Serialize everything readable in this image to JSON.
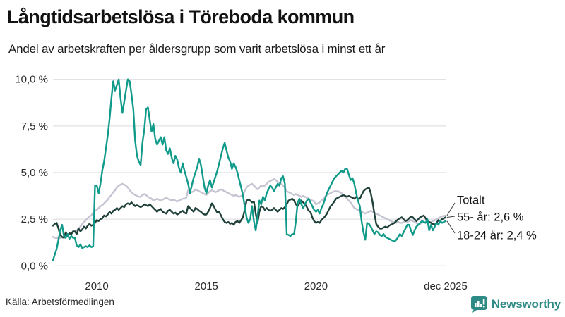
{
  "header": {
    "title": "Långtidsarbetslösa i Töreboda kommun",
    "subtitle": "Andel av arbetskraften per åldersgrupp som varit arbetslösa i minst ett år"
  },
  "footer": {
    "source": "Källa: Arbetsförmedlingen",
    "brand": "Newsworthy",
    "brand_color": "#2d8a85"
  },
  "colors": {
    "grid": "#d9d9de",
    "axis_text": "#2b2b2b",
    "label_text": "#161616",
    "leader_line": "#3d3d3d"
  },
  "chart_data": {
    "type": "line",
    "title": "Långtidsarbetslösa i Töreboda kommun",
    "subtitle": "Andel av arbetskraften per åldersgrupp som varit arbetslösa i minst ett år",
    "x_unit": "month",
    "x_start": "2008-01",
    "x_end": "2025-12",
    "ylim": [
      0,
      10
    ],
    "grid": true,
    "legend_position": "end-of-line-labels",
    "y_ticks": [
      {
        "label": "0,0 %",
        "value": 0
      },
      {
        "label": "2,5 %",
        "value": 2.5
      },
      {
        "label": "5,0 %",
        "value": 5
      },
      {
        "label": "7,5 %",
        "value": 7.5
      },
      {
        "label": "10,0 %",
        "value": 10
      }
    ],
    "x_ticks": [
      {
        "label": "2010",
        "month_index": 24
      },
      {
        "label": "2015",
        "month_index": 84
      },
      {
        "label": "2020",
        "month_index": 144
      },
      {
        "label": "dec 2025",
        "month_index": 215
      }
    ],
    "series": [
      {
        "name": "Totalt",
        "end_label": "Totalt",
        "end_value": 2.7,
        "color": "#c5c4d2",
        "values": [
          1.55,
          1.5,
          1.5,
          1.45,
          1.5,
          1.5,
          1.55,
          1.6,
          1.65,
          1.7,
          1.75,
          1.8,
          1.85,
          1.9,
          2.0,
          2.1,
          2.25,
          2.35,
          2.45,
          2.55,
          2.65,
          2.7,
          2.85,
          2.95,
          3.0,
          3.1,
          3.2,
          3.25,
          3.35,
          3.45,
          3.55,
          3.7,
          3.8,
          3.95,
          4.05,
          4.2,
          4.3,
          4.35,
          4.4,
          4.35,
          4.3,
          4.2,
          4.05,
          3.95,
          3.85,
          3.8,
          3.75,
          3.7,
          3.7,
          3.8,
          3.85,
          3.8,
          3.7,
          3.65,
          3.6,
          3.5,
          3.55,
          3.6,
          3.55,
          3.5,
          3.55,
          3.6,
          3.65,
          3.6,
          3.55,
          3.5,
          3.55,
          3.5,
          3.45,
          3.5,
          3.55,
          3.6,
          3.6,
          3.65,
          4.05,
          4.0,
          3.95,
          4.0,
          4.1,
          4.05,
          4.0,
          3.95,
          3.9,
          3.85,
          3.8,
          3.9,
          4.0,
          4.05,
          4.0,
          3.95,
          4.0,
          4.05,
          4.1,
          4.05,
          4.0,
          3.95,
          3.9,
          3.85,
          3.8,
          3.75,
          3.8,
          3.75,
          3.7,
          3.75,
          3.8,
          4.0,
          4.2,
          4.3,
          4.35,
          4.4,
          4.3,
          4.2,
          4.1,
          4.2,
          4.3,
          4.25,
          4.3,
          4.4,
          4.5,
          4.55,
          4.6,
          4.65,
          4.6,
          4.5,
          4.45,
          4.4,
          4.3,
          4.2,
          4.0,
          3.95,
          3.9,
          3.85,
          3.8,
          3.85,
          3.8,
          3.75,
          3.7,
          3.75,
          3.7,
          3.65,
          3.6,
          3.55,
          3.5,
          3.45,
          3.3,
          3.35,
          3.4,
          3.5,
          3.6,
          3.7,
          3.8,
          3.85,
          3.9,
          3.95,
          4.0,
          4.0,
          4.0,
          3.95,
          3.9,
          3.8,
          3.7,
          3.6,
          3.5,
          3.4,
          3.25,
          3.1,
          3.05,
          3.0,
          2.95,
          2.9,
          2.85,
          2.8,
          2.85,
          2.9,
          2.95,
          2.9,
          2.85,
          2.8,
          2.75,
          2.7,
          2.65,
          2.6,
          2.55,
          2.5,
          2.45,
          2.4,
          2.35,
          2.35,
          2.3,
          2.35,
          2.3,
          2.3,
          2.35,
          2.4,
          2.35,
          2.4,
          2.45,
          2.4,
          2.35,
          2.3,
          2.2,
          2.25,
          2.3,
          2.35,
          2.3,
          2.35,
          2.3,
          2.35,
          2.4,
          2.45,
          2.5,
          2.55,
          2.6,
          2.65,
          2.68,
          2.7
        ]
      },
      {
        "name": "55- år",
        "end_label": "55- år: 2,6 %",
        "end_value": 2.6,
        "color": "#20413a",
        "values": [
          2.15,
          2.25,
          2.3,
          2.0,
          1.65,
          1.55,
          1.5,
          1.8,
          1.6,
          1.75,
          1.7,
          1.85,
          1.85,
          1.7,
          2.0,
          1.85,
          1.95,
          2.1,
          2.0,
          2.15,
          2.25,
          2.15,
          2.2,
          2.3,
          2.45,
          2.4,
          2.5,
          2.55,
          2.7,
          2.65,
          2.75,
          2.9,
          2.8,
          2.95,
          3.0,
          3.1,
          3.0,
          3.1,
          3.2,
          3.15,
          3.3,
          3.35,
          3.3,
          3.4,
          3.3,
          3.2,
          3.25,
          3.2,
          3.15,
          3.2,
          3.3,
          3.25,
          3.2,
          3.3,
          3.2,
          3.1,
          3.0,
          2.9,
          3.0,
          3.05,
          2.9,
          2.85,
          2.8,
          2.95,
          3.0,
          2.9,
          2.8,
          2.85,
          2.75,
          2.8,
          2.9,
          2.95,
          2.85,
          2.8,
          3.2,
          3.1,
          3.0,
          2.9,
          3.1,
          3.05,
          2.95,
          2.9,
          2.8,
          2.75,
          2.75,
          2.9,
          3.1,
          3.35,
          3.2,
          3.0,
          2.85,
          2.9,
          2.7,
          2.5,
          2.35,
          2.3,
          2.35,
          2.25,
          2.3,
          2.2,
          2.35,
          2.4,
          2.3,
          2.45,
          2.6,
          3.0,
          3.5,
          3.55,
          3.5,
          3.4,
          3.45,
          2.8,
          2.3,
          2.9,
          3.2,
          3.15,
          3.0,
          3.1,
          3.0,
          2.95,
          3.0,
          3.1,
          3.0,
          2.9,
          3.0,
          3.1,
          3.05,
          3.15,
          3.3,
          3.5,
          3.55,
          3.6,
          3.5,
          3.3,
          3.2,
          3.35,
          3.5,
          3.4,
          3.3,
          3.15,
          2.95,
          2.9,
          2.6,
          2.4,
          2.3,
          2.35,
          2.3,
          2.45,
          2.55,
          2.65,
          2.8,
          3.0,
          3.2,
          3.3,
          3.45,
          3.6,
          3.65,
          3.7,
          3.75,
          3.8,
          3.75,
          3.7,
          3.75,
          3.7,
          3.65,
          3.6,
          3.7,
          3.6,
          3.6,
          3.8,
          4.0,
          4.1,
          4.15,
          4.2,
          3.9,
          3.4,
          2.8,
          2.25,
          2.1,
          2.0,
          2.0,
          2.05,
          2.1,
          2.05,
          2.15,
          2.2,
          2.25,
          2.3,
          2.4,
          2.5,
          2.55,
          2.6,
          2.5,
          2.4,
          2.45,
          2.55,
          2.65,
          2.6,
          2.5,
          2.4,
          2.5,
          2.6,
          2.65,
          2.7,
          2.55,
          2.4,
          2.35,
          2.3,
          2.25,
          2.2,
          2.3,
          2.45,
          2.4,
          2.5,
          2.55,
          2.6
        ]
      },
      {
        "name": "18-24 år",
        "end_label": "18-24 år: 2,4 %",
        "end_value": 2.4,
        "color": "#109a8a",
        "values": [
          0.3,
          0.6,
          0.9,
          1.4,
          1.9,
          2.2,
          1.6,
          1.5,
          1.7,
          1.45,
          1.6,
          1.5,
          1.5,
          1.1,
          1.0,
          1.15,
          0.95,
          1.0,
          1.05,
          1.0,
          1.1,
          1.0,
          1.05,
          4.3,
          4.3,
          3.9,
          4.4,
          5.1,
          5.6,
          6.3,
          7.0,
          7.9,
          9.0,
          9.9,
          9.4,
          9.7,
          10.0,
          9.0,
          8.2,
          8.8,
          9.4,
          10.0,
          9.9,
          9.2,
          8.4,
          6.7,
          5.9,
          5.6,
          5.4,
          6.6,
          7.3,
          8.4,
          8.5,
          7.8,
          7.2,
          7.6,
          6.8,
          6.5,
          6.7,
          6.9,
          6.5,
          6.9,
          6.2,
          6.0,
          6.3,
          5.8,
          5.5,
          5.9,
          5.7,
          5.25,
          5.0,
          5.5,
          5.1,
          4.75,
          4.4,
          3.9,
          4.3,
          4.7,
          5.0,
          5.3,
          5.75,
          5.4,
          4.8,
          4.2,
          3.9,
          4.3,
          4.6,
          4.2,
          4.5,
          4.8,
          5.1,
          5.5,
          5.9,
          6.3,
          6.6,
          6.2,
          5.8,
          5.6,
          5.2,
          5.5,
          5.3,
          5.0,
          4.6,
          4.2,
          3.8,
          3.2,
          2.6,
          2.3,
          2.5,
          3.2,
          2.4,
          1.9,
          2.6,
          3.5,
          3.3,
          3.7,
          3.5,
          3.9,
          4.1,
          4.3,
          4.2,
          4.0,
          4.2,
          4.4,
          4.3,
          4.7,
          4.8,
          4.4,
          1.7,
          1.65,
          1.6,
          1.7,
          1.7,
          2.4,
          3.4,
          3.6,
          3.3,
          3.1,
          3.3,
          3.5,
          3.6,
          3.4,
          3.2,
          3.0,
          2.9,
          3.0,
          2.8,
          3.1,
          3.3,
          3.6,
          3.9,
          4.1,
          4.3,
          4.5,
          4.7,
          4.8,
          4.9,
          5.0,
          5.1,
          5.0,
          5.2,
          5.2,
          4.9,
          4.6,
          4.7,
          4.4,
          3.9,
          3.5,
          3.2,
          2.4,
          1.8,
          1.4,
          2.3,
          2.25,
          2.1,
          1.9,
          1.7,
          1.85,
          1.8,
          1.65,
          1.6,
          1.7,
          1.55,
          1.5,
          1.45,
          1.4,
          1.35,
          1.3,
          1.4,
          1.55,
          1.7,
          1.6,
          1.8,
          2.0,
          2.2,
          2.2,
          1.9,
          1.65,
          1.9,
          2.1,
          2.2,
          2.3,
          2.4,
          2.35,
          2.3,
          2.5,
          1.9,
          2.2,
          1.9,
          2.1,
          2.3,
          2.2,
          2.4,
          2.3,
          2.35,
          2.4
        ]
      }
    ]
  }
}
